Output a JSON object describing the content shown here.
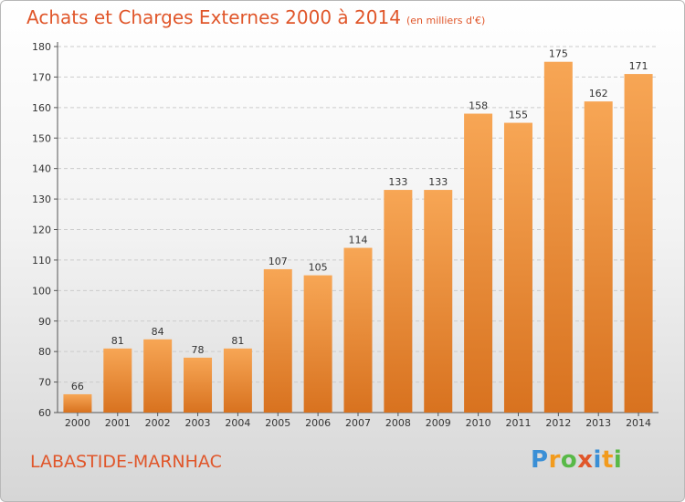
{
  "header": {
    "title": "Achats et Charges Externes 2000 à 2014",
    "unit": "(en milliers d'€)"
  },
  "footer": {
    "commune": "LABASTIDE-MARNHAC",
    "brand": "Proxiti",
    "brand_letters": [
      {
        "ch": "P",
        "color": "#3a8fd6"
      },
      {
        "ch": "r",
        "color": "#f29b1d"
      },
      {
        "ch": "o",
        "color": "#58b947"
      },
      {
        "ch": "x",
        "color": "#e0562a"
      },
      {
        "ch": "i",
        "color": "#3a8fd6"
      },
      {
        "ch": "t",
        "color": "#f29b1d"
      },
      {
        "ch": "i",
        "color": "#58b947"
      }
    ]
  },
  "colors": {
    "bar_top": "#f7a655",
    "bar_bottom": "#d8721f",
    "title": "#e0562a",
    "grid": "#cccccc"
  },
  "chart_data": {
    "type": "bar",
    "title": "Achats et Charges Externes 2000 à 2014",
    "categories": [
      "2000",
      "2001",
      "2002",
      "2003",
      "2004",
      "2005",
      "2006",
      "2007",
      "2008",
      "2009",
      "2010",
      "2011",
      "2012",
      "2013",
      "2014"
    ],
    "values": [
      66,
      81,
      84,
      78,
      81,
      107,
      105,
      114,
      133,
      133,
      158,
      155,
      175,
      162,
      171
    ],
    "ylim": [
      60,
      180
    ],
    "yticks": [
      60,
      70,
      80,
      90,
      100,
      110,
      120,
      130,
      140,
      150,
      160,
      170,
      180
    ],
    "grid": true,
    "data_labels": true
  }
}
